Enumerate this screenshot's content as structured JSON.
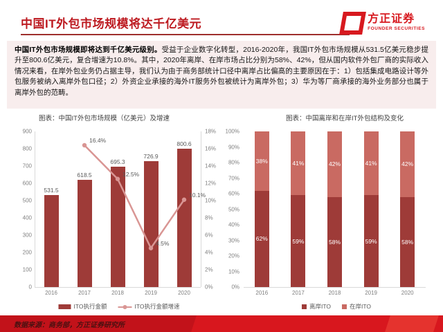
{
  "header": {
    "title": "中国IT外包市场规模将达千亿美元",
    "logo_cn": "方正证券",
    "logo_en": "FOUNDER SECURITIES"
  },
  "summary": {
    "lead": "中国IT外包市场规模即将达到千亿美元级别。",
    "body": "受益于企业数字化转型，2016-2020年，我国IT外包市场规模从531.5亿美元稳步提升至800.6亿美元，复合增速为10.8%。其中，2020年离岸、在岸市场占比分别为58%、42%，但从国内软件外包厂商的实际收入情况来看，在岸外包业务仍占据主导，我们认为由于商务部统计口径中离岸占比偏高的主要原因在于：1）包括集成电路设计等外包服务被纳入离岸外包口径；2）外资企业承接的海外IT服务外包被统计为离岸外包；3）华为等厂商承接的海外业务部分也属于离岸外包的范畴。"
  },
  "chart_data": [
    {
      "type": "bar",
      "title": "图表：中国IT外包市场规模（亿美元）及增速",
      "categories": [
        "2016",
        "2017",
        "2018",
        "2019",
        "2020"
      ],
      "series": [
        {
          "name": "ITO执行金额",
          "kind": "bar",
          "axis": "left",
          "values": [
            531.5,
            618.5,
            695.3,
            726.9,
            800.6
          ]
        },
        {
          "name": "ITO执行金额增速",
          "kind": "line",
          "axis": "right",
          "unit": "%",
          "values": [
            null,
            16.4,
            12.5,
            4.5,
            10.1
          ]
        }
      ],
      "left_axis": {
        "min": 0,
        "max": 900,
        "step": 100
      },
      "right_axis": {
        "min": 0,
        "max": 18,
        "step": 2,
        "unit": "%"
      },
      "grid": false,
      "legend_position": "bottom"
    },
    {
      "type": "bar",
      "stacked": true,
      "title": "图表：中国离岸和在岸IT外包结构及变化",
      "categories": [
        "2016",
        "2017",
        "2018",
        "2019",
        "2020"
      ],
      "series": [
        {
          "name": "离岸ITO",
          "values": [
            62,
            59,
            58,
            59,
            58
          ],
          "unit": "%"
        },
        {
          "name": "在岸ITO",
          "values": [
            38,
            41,
            42,
            41,
            42
          ],
          "unit": "%"
        }
      ],
      "y_axis": {
        "min": 0,
        "max": 100,
        "step": 10,
        "unit": "%"
      },
      "grid": false,
      "legend_position": "bottom"
    }
  ],
  "footer": {
    "source": "数据来源：商务部，方正证券研究所"
  },
  "colors": {
    "title_red": "#bd1a20",
    "bar_dark": "#9e3b38",
    "bar_light": "#c96a62",
    "line_pink": "#d99694",
    "axis_gray": "#d9d9d9",
    "footer_red": "#d8171e"
  }
}
